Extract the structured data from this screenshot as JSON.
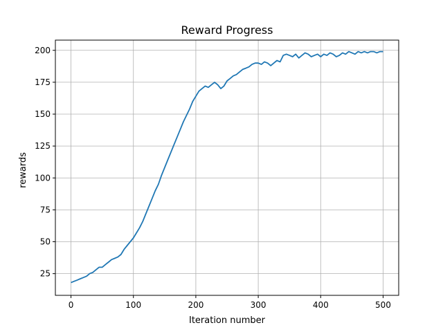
{
  "chart_data": {
    "type": "line",
    "title": "Reward Progress",
    "xlabel": "Iteration number",
    "ylabel": "rewards",
    "xlim": [
      -25,
      525
    ],
    "ylim": [
      8,
      208
    ],
    "xticks": [
      0,
      100,
      200,
      300,
      400,
      500
    ],
    "yticks": [
      25,
      50,
      75,
      100,
      125,
      150,
      175,
      200
    ],
    "grid": true,
    "series": [
      {
        "color": "#1f77b4",
        "x": [
          0,
          5,
          10,
          15,
          20,
          25,
          30,
          35,
          40,
          45,
          50,
          55,
          60,
          65,
          70,
          75,
          80,
          85,
          90,
          95,
          100,
          105,
          110,
          115,
          120,
          125,
          130,
          135,
          140,
          145,
          150,
          155,
          160,
          165,
          170,
          175,
          180,
          185,
          190,
          195,
          200,
          205,
          210,
          215,
          220,
          225,
          230,
          235,
          240,
          245,
          250,
          255,
          260,
          265,
          270,
          275,
          280,
          285,
          290,
          295,
          300,
          305,
          310,
          315,
          320,
          325,
          330,
          335,
          340,
          345,
          350,
          355,
          360,
          365,
          370,
          375,
          380,
          385,
          390,
          395,
          400,
          405,
          410,
          415,
          420,
          425,
          430,
          435,
          440,
          445,
          450,
          455,
          460,
          465,
          470,
          475,
          480,
          485,
          490,
          495,
          500
        ],
        "y": [
          18,
          19,
          20,
          21,
          22,
          23,
          25,
          26,
          28,
          30,
          30,
          32,
          34,
          36,
          37,
          38,
          40,
          44,
          47,
          50,
          53,
          57,
          61,
          66,
          72,
          78,
          84,
          90,
          95,
          102,
          108,
          114,
          120,
          126,
          132,
          138,
          144,
          149,
          154,
          160,
          164,
          168,
          170,
          172,
          171,
          173,
          175,
          173,
          170,
          172,
          176,
          178,
          180,
          181,
          183,
          185,
          186,
          187,
          189,
          190,
          190,
          189,
          191,
          190,
          188,
          190,
          192,
          191,
          196,
          197,
          196,
          195,
          197,
          194,
          196,
          198,
          197,
          195,
          196,
          197,
          195,
          197,
          196,
          198,
          197,
          195,
          196,
          198,
          197,
          199,
          198,
          197,
          199,
          198,
          199,
          198,
          199,
          199,
          198,
          199,
          199
        ]
      }
    ]
  }
}
